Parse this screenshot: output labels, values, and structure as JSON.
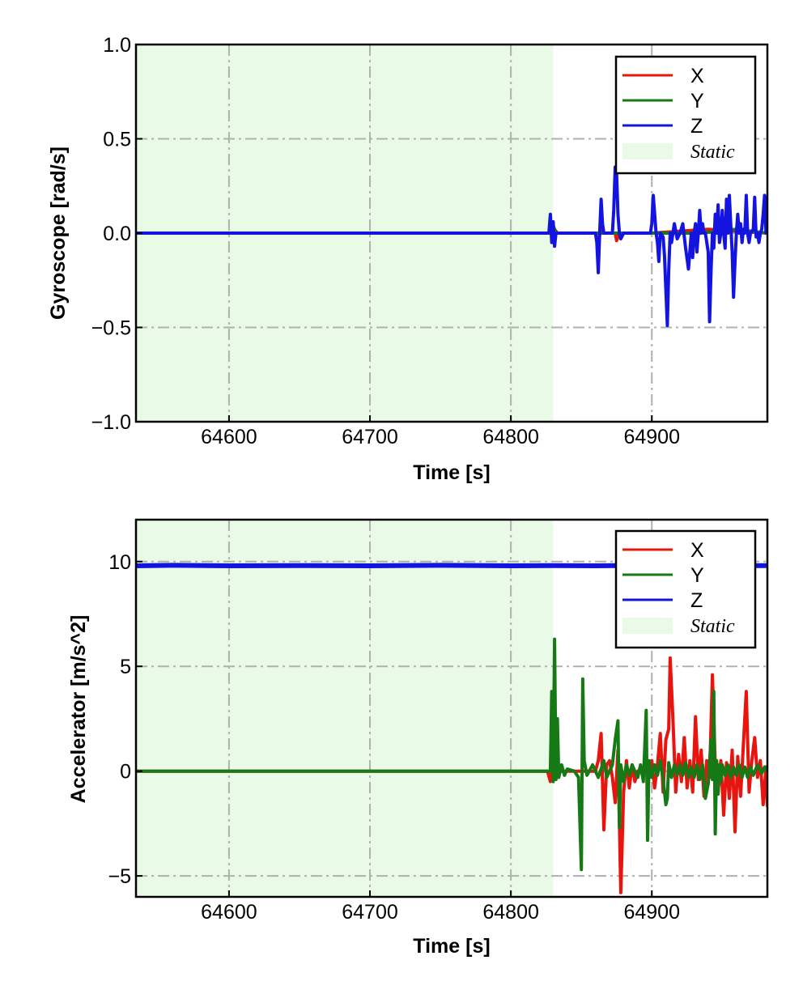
{
  "colors": {
    "x": "#e8140e",
    "y": "#157a15",
    "z": "#1414e0",
    "static_fill": "#e9fbe6",
    "grid": "#b0b0b0"
  },
  "chart_data": [
    {
      "type": "line",
      "title": "",
      "xlabel": "Time [s]",
      "ylabel": "Gyroscope [rad/s]",
      "xlim": [
        64534,
        64982
      ],
      "ylim": [
        -1.0,
        1.0
      ],
      "xticks": [
        64600,
        64700,
        64800,
        64900
      ],
      "xtick_labels": [
        "64600",
        "64700",
        "64800",
        "64900"
      ],
      "yticks": [
        -1.0,
        -0.5,
        0.0,
        0.5,
        1.0
      ],
      "ytick_labels": [
        "−1.0",
        "−0.5",
        "0.0",
        "0.5",
        "1.0"
      ],
      "grid": true,
      "legend_position": "top-right",
      "legend": [
        "X",
        "Y",
        "Z",
        "Static"
      ],
      "static_region": [
        64534,
        64830
      ],
      "series": [
        {
          "name": "X",
          "color_key": "x",
          "x": [
            64534,
            64828,
            64829,
            64830,
            64831,
            64833,
            64860,
            64862,
            64864,
            64866,
            64874,
            64875,
            64877,
            64900,
            64940,
            64982
          ],
          "y": [
            0,
            0,
            0.05,
            -0.05,
            0.02,
            0,
            0,
            -0.06,
            0.05,
            0,
            0,
            -0.04,
            0,
            0,
            0.02,
            0
          ]
        },
        {
          "name": "Y",
          "color_key": "y",
          "x": [
            64534,
            64828,
            64830,
            64832,
            64860,
            64900,
            64930,
            64932,
            64934,
            64960,
            64982
          ],
          "y": [
            0,
            0,
            0.04,
            0,
            0,
            0,
            0,
            0.04,
            0,
            0.02,
            0
          ]
        },
        {
          "name": "Z",
          "color_key": "z",
          "x": [
            64534,
            64827,
            64828,
            64829,
            64830,
            64831,
            64832,
            64860,
            64861,
            64862,
            64863,
            64864,
            64865,
            64866,
            64872,
            64873,
            64874,
            64875,
            64876,
            64877,
            64878,
            64880,
            64899,
            64900,
            64901,
            64903,
            64904,
            64905,
            64906,
            64908,
            64909,
            64910,
            64911,
            64912,
            64913,
            64914,
            64915,
            64916,
            64918,
            64920,
            64922,
            64924,
            64926,
            64927,
            64928,
            64929,
            64930,
            64931,
            64932,
            64933,
            64934,
            64935,
            64936,
            64937,
            64938,
            64940,
            64941,
            64942,
            64943,
            64944,
            64945,
            64946,
            64947,
            64948,
            64949,
            64950,
            64951,
            64952,
            64953,
            64954,
            64955,
            64956,
            64957,
            64958,
            64959,
            64960,
            64961,
            64962,
            64963,
            64964,
            64965,
            64966,
            64967,
            64968,
            64969,
            64970,
            64972,
            64973,
            64974,
            64975,
            64976,
            64977,
            64978,
            64979,
            64980,
            64981,
            64982
          ],
          "y": [
            0,
            0,
            0.1,
            -0.05,
            0.06,
            -0.07,
            0,
            0,
            -0.05,
            -0.21,
            0,
            0.18,
            0.05,
            0,
            0,
            0.12,
            0.35,
            0.32,
            0.1,
            0,
            -0.03,
            0,
            0,
            0.05,
            0.2,
            0,
            -0.05,
            -0.15,
            0,
            -0.02,
            -0.12,
            -0.3,
            -0.49,
            -0.2,
            0,
            -0.05,
            0,
            0.05,
            -0.03,
            0,
            0.05,
            -0.08,
            -0.19,
            -0.1,
            0,
            -0.13,
            0,
            0.05,
            -0.1,
            0,
            0.12,
            0,
            0.05,
            0,
            0,
            -0.1,
            -0.47,
            -0.2,
            0,
            -0.08,
            0.1,
            0,
            0.15,
            -0.05,
            0,
            0.12,
            0,
            -0.08,
            0.18,
            0,
            0.2,
            0.05,
            -0.1,
            -0.34,
            -0.15,
            0,
            0.1,
            0,
            0.05,
            -0.05,
            0.02,
            0,
            0.2,
            0,
            -0.05,
            0,
            0.02,
            0.19,
            -0.02,
            0,
            -0.05,
            0,
            0.02,
            0.1,
            0.2,
            0,
            0.2
          ]
        }
      ]
    },
    {
      "type": "line",
      "title": "",
      "xlabel": "Time [s]",
      "ylabel": "Accelerator [m/s^2]",
      "xlim": [
        64534,
        64982
      ],
      "ylim": [
        -6.0,
        12.0
      ],
      "xticks": [
        64600,
        64700,
        64800,
        64900
      ],
      "xtick_labels": [
        "64600",
        "64700",
        "64800",
        "64900"
      ],
      "yticks": [
        -5,
        0,
        5,
        10
      ],
      "ytick_labels": [
        "−5",
        "0",
        "5",
        "10"
      ],
      "grid": true,
      "legend_position": "top-right",
      "legend": [
        "X",
        "Y",
        "Z",
        "Static"
      ],
      "static_region": [
        64534,
        64830
      ],
      "series": [
        {
          "name": "X",
          "color_key": "x",
          "x": [
            64534,
            64826,
            64828,
            64830,
            64832,
            64860,
            64862,
            64864,
            64866,
            64868,
            64870,
            64872,
            64874,
            64876,
            64878,
            64880,
            64882,
            64884,
            64886,
            64888,
            64890,
            64895,
            64900,
            64902,
            64904,
            64906,
            64908,
            64910,
            64912,
            64913,
            64915,
            64917,
            64919,
            64921,
            64923,
            64925,
            64927,
            64929,
            64931,
            64933,
            64935,
            64937,
            64939,
            64941,
            64943,
            64945,
            64947,
            64949,
            64951,
            64953,
            64955,
            64957,
            64959,
            64961,
            64963,
            64965,
            64967,
            64969,
            64971,
            64973,
            64975,
            64977,
            64979,
            64981,
            64982
          ],
          "y": [
            0,
            0,
            -0.5,
            0.5,
            0,
            0,
            0.5,
            1.8,
            -2.8,
            0.3,
            0.5,
            -0.3,
            -1.5,
            1.0,
            -5.8,
            -1.0,
            0.5,
            -0.8,
            0.3,
            -0.5,
            0,
            0.2,
            0.5,
            -0.8,
            0.3,
            1.8,
            -1.0,
            1.5,
            2.0,
            5.4,
            2.5,
            -1.0,
            0.8,
            -0.5,
            1.6,
            -0.8,
            0.5,
            -1.0,
            2.6,
            -0.4,
            1.0,
            -1.2,
            0.5,
            -0.3,
            4.6,
            0.3,
            -1.0,
            0.5,
            -2.1,
            0.4,
            -1.3,
            1.0,
            -2.9,
            0.7,
            -1.2,
            1.3,
            3.8,
            -1.0,
            0.5,
            1.6,
            -0.3,
            0.5,
            -1.6,
            0.2,
            -1.7
          ]
        },
        {
          "name": "Y",
          "color_key": "y",
          "x": [
            64534,
            64828,
            64829,
            64830,
            64831,
            64832,
            64833,
            64834,
            64836,
            64838,
            64840,
            64845,
            64848,
            64850,
            64851,
            64852,
            64854,
            64858,
            64862,
            64866,
            64868,
            64872,
            64874,
            64876,
            64877,
            64878,
            64880,
            64882,
            64884,
            64886,
            64888,
            64890,
            64892,
            64894,
            64896,
            64897,
            64898,
            64900,
            64902,
            64904,
            64906,
            64908,
            64910,
            64911,
            64912,
            64914,
            64916,
            64918,
            64920,
            64922,
            64924,
            64926,
            64928,
            64930,
            64932,
            64934,
            64936,
            64938,
            64940,
            64942,
            64943,
            64944,
            64945,
            64946,
            64947,
            64948,
            64949,
            64950,
            64952,
            64954,
            64956,
            64958,
            64960,
            64962,
            64964,
            64966,
            64968,
            64970,
            64972,
            64975,
            64978,
            64980,
            64982
          ],
          "y": [
            0,
            0,
            3.8,
            -0.5,
            6.3,
            -0.4,
            2.5,
            -0.3,
            0.3,
            -0.2,
            0.1,
            0,
            -0.3,
            -4.7,
            4.4,
            0.5,
            -0.2,
            0.3,
            -0.3,
            0.5,
            -0.3,
            0.3,
            1.5,
            2.4,
            -2.7,
            0.3,
            -0.5,
            0.3,
            -0.2,
            0.3,
            0,
            -0.3,
            0.3,
            -0.5,
            2.9,
            -3.3,
            0.5,
            -0.3,
            0.3,
            -0.2,
            0.5,
            -0.4,
            -1.6,
            -1.3,
            0.4,
            -0.3,
            0.3,
            -0.2,
            0.3,
            -0.2,
            0.4,
            -0.3,
            0.2,
            -0.3,
            0.3,
            -0.4,
            0.3,
            -1.3,
            -0.6,
            1.5,
            -0.4,
            3.8,
            -3.0,
            0.5,
            -1.1,
            0.3,
            -0.5,
            0.3,
            -0.2,
            0.3,
            -0.3,
            0.2,
            -0.2,
            0.3,
            -0.3,
            0.2,
            -0.3,
            0.2,
            -0.2,
            0.3,
            -0.1,
            0.2,
            0
          ]
        },
        {
          "name": "Z",
          "color_key": "z",
          "x": [
            64534,
            64560,
            64600,
            64650,
            64700,
            64750,
            64800,
            64830,
            64860,
            64900,
            64940,
            64982
          ],
          "y": [
            9.8,
            9.82,
            9.8,
            9.81,
            9.8,
            9.82,
            9.8,
            9.81,
            9.8,
            9.82,
            9.8,
            9.81
          ]
        }
      ]
    }
  ]
}
